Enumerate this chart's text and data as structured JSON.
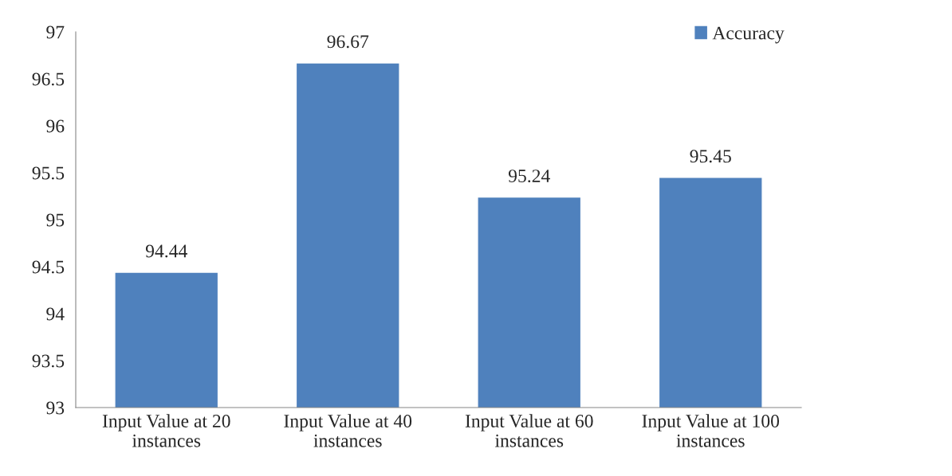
{
  "chart_data": {
    "type": "bar",
    "categories": [
      "Input Value at 20\ninstances",
      "Input Value at 40\ninstances",
      "Input Value at 60\ninstances",
      "Input Value at 100\ninstances"
    ],
    "series": [
      {
        "name": "Accuracy",
        "color": "#4f81bd",
        "values": [
          94.44,
          96.67,
          95.24,
          95.45
        ]
      }
    ],
    "ylim": [
      93,
      97
    ],
    "yticks": [
      93,
      93.5,
      94,
      94.5,
      95,
      95.5,
      96,
      96.5,
      97
    ],
    "data_labels": true,
    "grid": false,
    "legend": "top right"
  }
}
